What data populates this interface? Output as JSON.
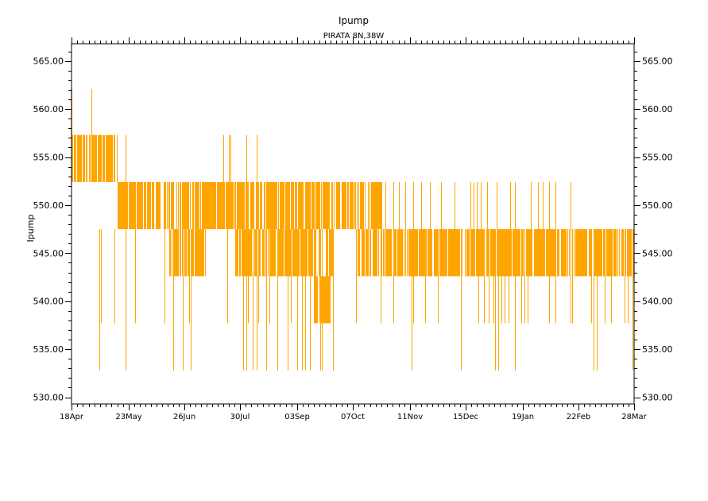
{
  "chart_data": {
    "type": "line",
    "title": "Ipump",
    "subtitle": "PIRATA 8N,38W",
    "xlabel": "",
    "ylabel": "Ipump",
    "ylim": [
      529.3,
      566.8
    ],
    "xlim_days": [
      0,
      344
    ],
    "x_tick_days": [
      0,
      35,
      69,
      103,
      138,
      172,
      207,
      241,
      276,
      310,
      344
    ],
    "x_tick_labels": [
      "18Apr",
      "23May",
      "26Jun",
      "30Jul",
      "03Sep",
      "07Oct",
      "11Nov",
      "15Dec",
      "19Jan",
      "22Feb",
      "28Mar"
    ],
    "y_ticks": [
      530,
      535,
      540,
      545,
      550,
      555,
      560,
      565
    ],
    "y_tick_labels": [
      "530.00",
      "535.00",
      "540.00",
      "545.00",
      "550.00",
      "555.00",
      "560.00",
      "565.00"
    ],
    "series_color": "#FFA500",
    "grid": false,
    "dense_bands": [
      [
        0,
        28,
        552.4,
        557.3
      ],
      [
        28,
        190,
        547.5,
        552.4
      ],
      [
        60,
        82,
        542.6,
        547.5
      ],
      [
        100,
        160,
        542.6,
        547.5
      ],
      [
        148,
        158,
        537.7,
        542.6
      ],
      [
        175,
        190,
        542.6,
        547.5
      ],
      [
        190,
        250,
        542.6,
        547.5
      ],
      [
        250,
        344,
        542.6,
        547.5
      ]
    ],
    "spikes_down_532_8": [
      17,
      33,
      62,
      68,
      73,
      105,
      107,
      111,
      113,
      119,
      126,
      132,
      138,
      141,
      143,
      146,
      152,
      153,
      160,
      208,
      238,
      259,
      261,
      271,
      319,
      321,
      343
    ],
    "spikes_down_537_7": [
      18,
      26,
      39,
      57,
      72,
      95,
      108,
      114,
      121,
      134,
      146,
      148,
      158,
      174,
      189,
      197,
      209,
      216,
      224,
      249,
      252,
      255,
      258,
      263,
      265,
      267,
      275,
      277,
      279,
      292,
      296,
      305,
      306,
      318,
      326,
      330,
      338,
      340
    ],
    "spikes_up_557_3": [
      33,
      93,
      96,
      97,
      107,
      113
    ],
    "spikes_up_562_1": [
      0,
      12
    ],
    "spikes_up_552_4": [
      192,
      197,
      200,
      204,
      209,
      214,
      219,
      226,
      234,
      244,
      246,
      248,
      250,
      254,
      260,
      268,
      271,
      281,
      285,
      288,
      292,
      296,
      305
    ]
  }
}
